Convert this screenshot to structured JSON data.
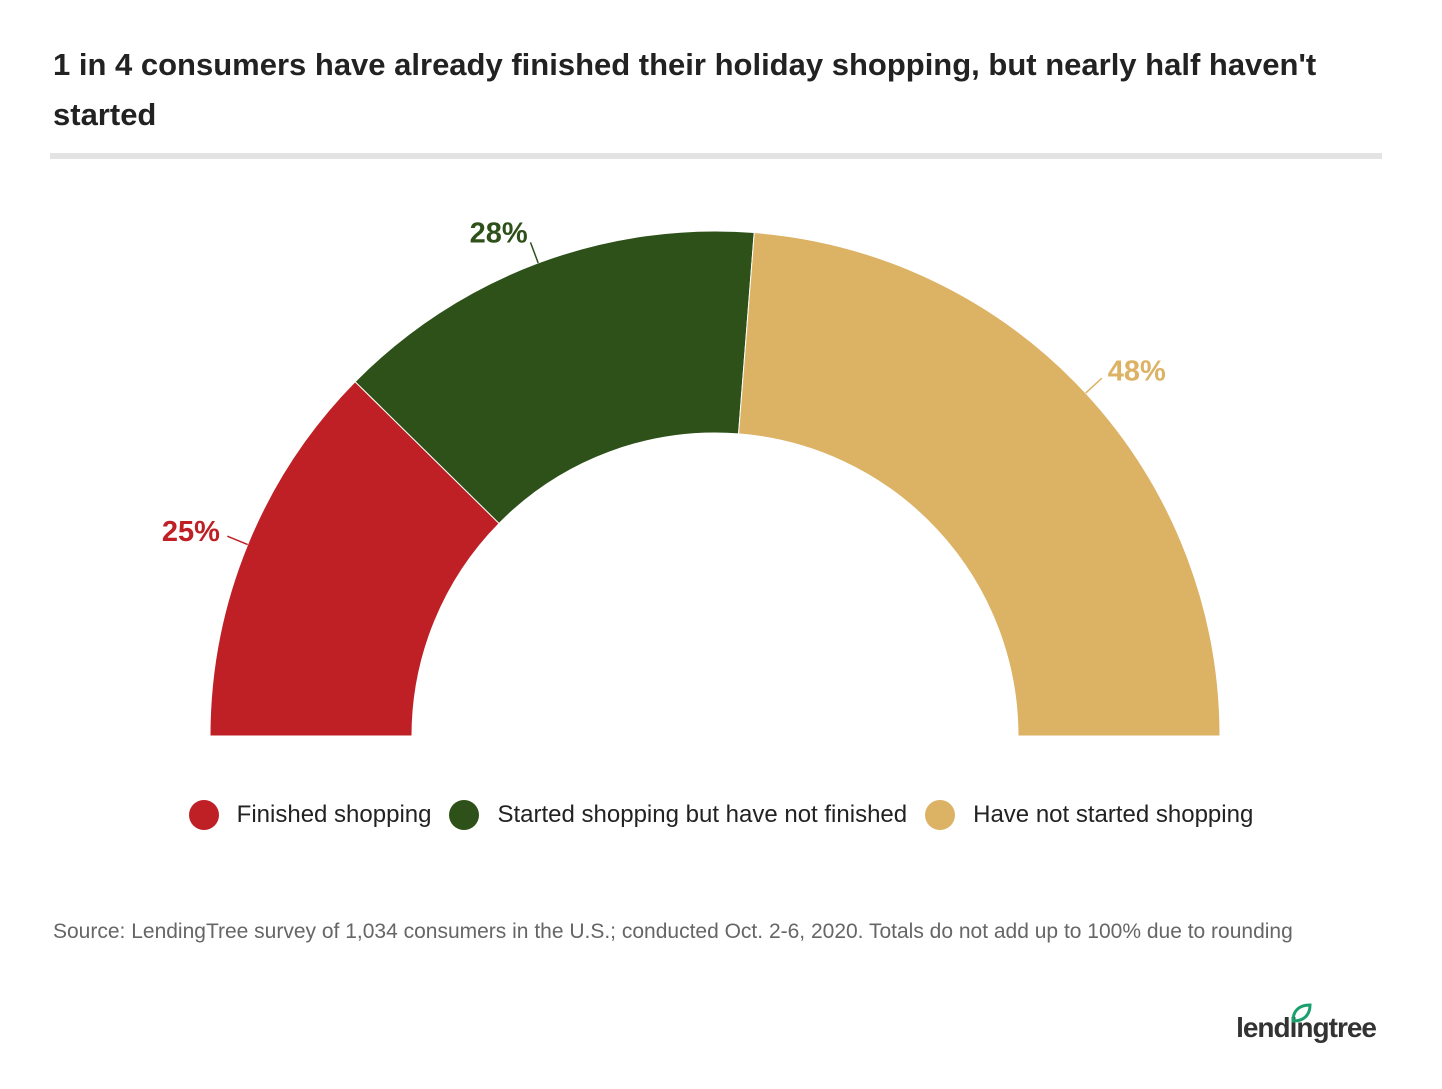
{
  "chart_data": {
    "type": "halfdonut",
    "title": "1 in 4 consumers have already finished their holiday shopping, but nearly half haven't started",
    "categories": [
      "Finished shopping",
      "Started shopping but have not finished",
      "Have not started shopping"
    ],
    "values": [
      25,
      28,
      48
    ],
    "value_labels": [
      "25%",
      "28%",
      "48%"
    ],
    "colors": [
      "#be2026",
      "#2d5118",
      "#dcb264"
    ],
    "source": "Source: LendingTree survey of 1,034 consumers in the U.S.; conducted Oct. 2-6, 2020. Totals do not add up to 100% due to rounding",
    "logo": "lendingtree"
  }
}
